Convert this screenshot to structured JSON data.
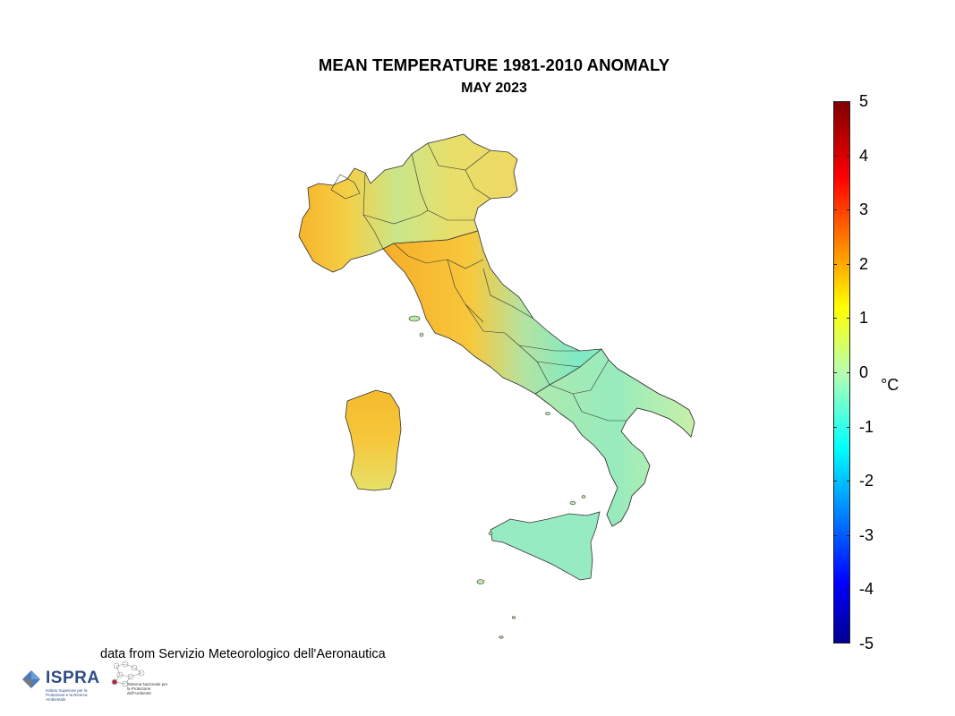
{
  "title": "MEAN TEMPERATURE 1981-2010 ANOMALY",
  "subtitle": "MAY 2023",
  "map": {
    "regions": [
      "Piemonte",
      "Valle d'Aosta",
      "Lombardia",
      "Trentino-Alto Adige",
      "Veneto",
      "Friuli-Venezia Giulia",
      "Liguria",
      "Emilia-Romagna",
      "Toscana",
      "Umbria",
      "Marche",
      "Lazio",
      "Abruzzo",
      "Molise",
      "Campania",
      "Puglia",
      "Basilicata",
      "Calabria",
      "Sicilia",
      "Sardegna"
    ]
  },
  "colorbar": {
    "unit": "°C",
    "min": -5,
    "max": 5,
    "ticks": [
      "5",
      "4",
      "3",
      "2",
      "1",
      "0",
      "-1",
      "-2",
      "-3",
      "-4",
      "-5"
    ],
    "colormap": "jet"
  },
  "source": "data from Servizio Meteorologico dell'Aeronautica",
  "logos": {
    "ispra": {
      "name": "ISPRA",
      "desc": "Istituto Superiore per la Protezione e la Ricerca Ambientale",
      "color": "#2f4b84"
    },
    "snpa": {
      "desc": "Sistema Nazionale per la Protezione dell'Ambiente"
    }
  }
}
